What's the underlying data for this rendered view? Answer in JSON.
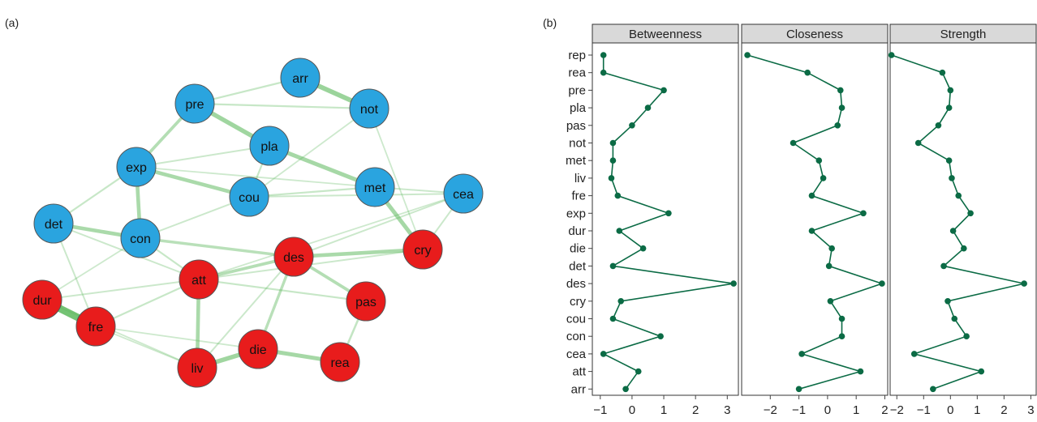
{
  "panel_a_label": "(a)",
  "panel_b_label": "(b)",
  "colors": {
    "node_group1": "#2aa4df",
    "node_group2": "#e81c1c",
    "edge": "#5cb85c",
    "line": "#0b6b45",
    "strip": "#d9d9d9"
  },
  "network": {
    "nodes": [
      {
        "id": "arr",
        "group": 1
      },
      {
        "id": "not",
        "group": 1
      },
      {
        "id": "pre",
        "group": 1
      },
      {
        "id": "pla",
        "group": 1
      },
      {
        "id": "exp",
        "group": 1
      },
      {
        "id": "met",
        "group": 1
      },
      {
        "id": "cea",
        "group": 1
      },
      {
        "id": "cou",
        "group": 1
      },
      {
        "id": "det",
        "group": 1
      },
      {
        "id": "con",
        "group": 1
      },
      {
        "id": "des",
        "group": 2
      },
      {
        "id": "cry",
        "group": 2
      },
      {
        "id": "att",
        "group": 2
      },
      {
        "id": "dur",
        "group": 2
      },
      {
        "id": "pas",
        "group": 2
      },
      {
        "id": "fre",
        "group": 2
      },
      {
        "id": "die",
        "group": 2
      },
      {
        "id": "liv",
        "group": 2
      },
      {
        "id": "rea",
        "group": 2
      }
    ],
    "edges": [
      [
        "dur",
        "fre",
        1.0
      ],
      [
        "arr",
        "not",
        0.6
      ],
      [
        "pre",
        "pla",
        0.55
      ],
      [
        "pla",
        "met",
        0.5
      ],
      [
        "exp",
        "cou",
        0.45
      ],
      [
        "exp",
        "con",
        0.45
      ],
      [
        "det",
        "con",
        0.45
      ],
      [
        "met",
        "cry",
        0.5
      ],
      [
        "des",
        "cry",
        0.45
      ],
      [
        "att",
        "liv",
        0.45
      ],
      [
        "liv",
        "die",
        0.55
      ],
      [
        "die",
        "rea",
        0.5
      ],
      [
        "att",
        "des",
        0.35
      ],
      [
        "des",
        "pas",
        0.35
      ],
      [
        "pre",
        "exp",
        0.35
      ],
      [
        "des",
        "die",
        0.3
      ],
      [
        "con",
        "des",
        0.3
      ],
      [
        "pre",
        "arr",
        0.15
      ],
      [
        "pre",
        "not",
        0.15
      ],
      [
        "pla",
        "cou",
        0.15
      ],
      [
        "cou",
        "met",
        0.15
      ],
      [
        "cou",
        "cea",
        0.12
      ],
      [
        "met",
        "cea",
        0.12
      ],
      [
        "con",
        "att",
        0.15
      ],
      [
        "det",
        "att",
        0.12
      ],
      [
        "fre",
        "att",
        0.15
      ],
      [
        "dur",
        "att",
        0.12
      ],
      [
        "fre",
        "liv",
        0.1
      ],
      [
        "fre",
        "die",
        0.1
      ],
      [
        "pas",
        "rea",
        0.2
      ],
      [
        "att",
        "pas",
        0.15
      ],
      [
        "cry",
        "cea",
        0.12
      ],
      [
        "not",
        "cou",
        0.1
      ],
      [
        "exp",
        "det",
        0.15
      ],
      [
        "con",
        "cou",
        0.12
      ],
      [
        "des",
        "cea",
        0.12
      ],
      [
        "att",
        "cry",
        0.12
      ],
      [
        "det",
        "fre",
        0.12
      ],
      [
        "dur",
        "con",
        0.1
      ],
      [
        "not",
        "cry",
        0.1
      ],
      [
        "pla",
        "exp",
        0.12
      ],
      [
        "des",
        "liv",
        0.12
      ],
      [
        "cea",
        "att",
        0.1
      ],
      [
        "exp",
        "met",
        0.1
      ],
      [
        "dur",
        "liv",
        0.1
      ]
    ]
  },
  "chart_data": {
    "type": "line",
    "facets": [
      "Betweenness",
      "Closeness",
      "Strength"
    ],
    "categories": [
      "rep",
      "rea",
      "pre",
      "pla",
      "pas",
      "not",
      "met",
      "liv",
      "fre",
      "exp",
      "dur",
      "die",
      "det",
      "des",
      "cry",
      "cou",
      "con",
      "cea",
      "att",
      "arr"
    ],
    "series": [
      {
        "name": "Betweenness",
        "values": [
          -0.9,
          -0.9,
          1.0,
          0.5,
          0.0,
          -0.6,
          -0.6,
          -0.65,
          -0.45,
          1.15,
          -0.4,
          0.35,
          -0.6,
          3.2,
          -0.35,
          -0.6,
          0.9,
          -0.9,
          0.2,
          -0.2
        ]
      },
      {
        "name": "Closeness",
        "values": [
          -2.8,
          -0.7,
          0.45,
          0.5,
          0.35,
          -1.2,
          -0.3,
          -0.15,
          -0.55,
          1.25,
          -0.55,
          0.15,
          0.05,
          1.9,
          0.1,
          0.5,
          0.5,
          -0.9,
          1.15,
          -1.0
        ]
      },
      {
        "name": "Strength",
        "values": [
          -2.2,
          -0.3,
          0.0,
          -0.05,
          -0.45,
          -1.2,
          -0.05,
          0.05,
          0.3,
          0.75,
          0.1,
          0.5,
          -0.25,
          2.75,
          -0.1,
          0.15,
          0.6,
          -1.35,
          1.15,
          -0.65
        ]
      }
    ],
    "xlim": [
      [
        -1.25,
        3.35
      ],
      [
        -3.0,
        2.1
      ],
      [
        -2.25,
        3.2
      ]
    ],
    "xticks": [
      [
        -1,
        0,
        1,
        2,
        3
      ],
      [
        -2,
        -1,
        0,
        1,
        2
      ],
      [
        -2,
        -1,
        0,
        1,
        2,
        3
      ]
    ],
    "xtick_labels": [
      [
        "−1",
        "0",
        "1",
        "2",
        "3"
      ],
      [
        "−2",
        "−1",
        "0",
        "1",
        "2"
      ],
      [
        "−2",
        "−1",
        "0",
        "1",
        "2",
        "3"
      ]
    ]
  }
}
